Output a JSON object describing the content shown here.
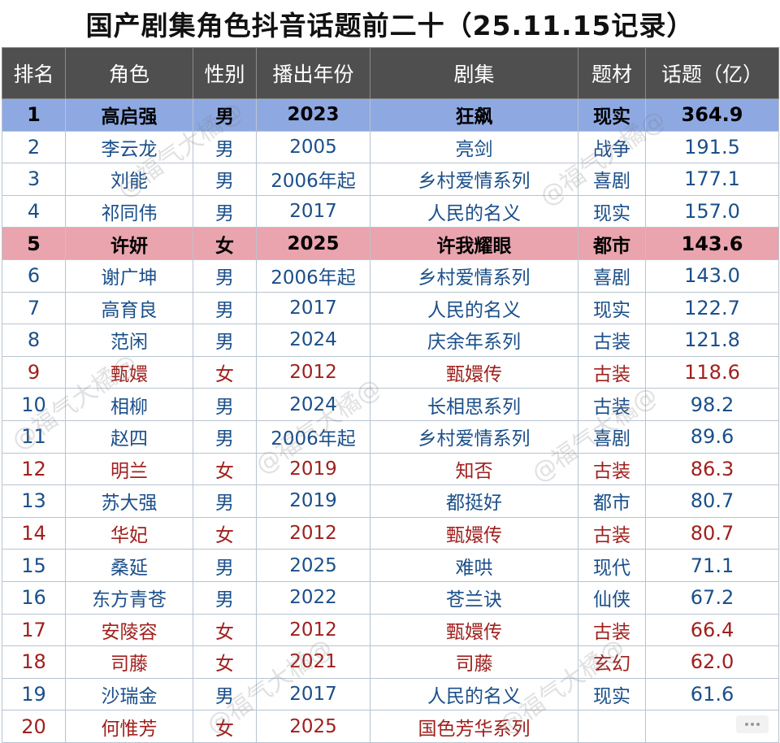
{
  "title": "国产剧集角色抖音话题前二十（25.11.15记录）",
  "headers": [
    "排名",
    "角色",
    "性别",
    "播出年份",
    "剧集",
    "题材",
    "话题（亿）"
  ],
  "rows": [
    {
      "rank": "1",
      "role": "高启强",
      "gender": "男",
      "year": "2023",
      "series": "狂飙",
      "genre": "现实",
      "topic": "364.9",
      "style": "r-top"
    },
    {
      "rank": "2",
      "role": "李云龙",
      "gender": "男",
      "year": "2005",
      "series": "亮剑",
      "genre": "战争",
      "topic": "191.5",
      "style": ""
    },
    {
      "rank": "3",
      "role": "刘能",
      "gender": "男",
      "year": "2006年起",
      "series": "乡村爱情系列",
      "genre": "喜剧",
      "topic": "177.1",
      "style": ""
    },
    {
      "rank": "4",
      "role": "祁同伟",
      "gender": "男",
      "year": "2017",
      "series": "人民的名义",
      "genre": "现实",
      "topic": "157.0",
      "style": ""
    },
    {
      "rank": "5",
      "role": "许妍",
      "gender": "女",
      "year": "2025",
      "series": "许我耀眼",
      "genre": "都市",
      "topic": "143.6",
      "style": "r-pink"
    },
    {
      "rank": "6",
      "role": "谢广坤",
      "gender": "男",
      "year": "2006年起",
      "series": "乡村爱情系列",
      "genre": "喜剧",
      "topic": "143.0",
      "style": ""
    },
    {
      "rank": "7",
      "role": "高育良",
      "gender": "男",
      "year": "2017",
      "series": "人民的名义",
      "genre": "现实",
      "topic": "122.7",
      "style": ""
    },
    {
      "rank": "8",
      "role": "范闲",
      "gender": "男",
      "year": "2024",
      "series": "庆余年系列",
      "genre": "古装",
      "topic": "121.8",
      "style": ""
    },
    {
      "rank": "9",
      "role": "甄嬛",
      "gender": "女",
      "year": "2012",
      "series": "甄嬛传",
      "genre": "古装",
      "topic": "118.6",
      "style": "r-red"
    },
    {
      "rank": "10",
      "role": "相柳",
      "gender": "男",
      "year": "2024",
      "series": "长相思系列",
      "genre": "古装",
      "topic": "98.2",
      "style": ""
    },
    {
      "rank": "11",
      "role": "赵四",
      "gender": "男",
      "year": "2006年起",
      "series": "乡村爱情系列",
      "genre": "喜剧",
      "topic": "89.6",
      "style": ""
    },
    {
      "rank": "12",
      "role": "明兰",
      "gender": "女",
      "year": "2019",
      "series": "知否",
      "genre": "古装",
      "topic": "86.3",
      "style": "r-red"
    },
    {
      "rank": "13",
      "role": "苏大强",
      "gender": "男",
      "year": "2019",
      "series": "都挺好",
      "genre": "都市",
      "topic": "80.7",
      "style": ""
    },
    {
      "rank": "14",
      "role": "华妃",
      "gender": "女",
      "year": "2012",
      "series": "甄嬛传",
      "genre": "古装",
      "topic": "80.7",
      "style": "r-red"
    },
    {
      "rank": "15",
      "role": "桑延",
      "gender": "男",
      "year": "2025",
      "series": "难哄",
      "genre": "现代",
      "topic": "71.1",
      "style": ""
    },
    {
      "rank": "16",
      "role": "东方青苍",
      "gender": "男",
      "year": "2022",
      "series": "苍兰诀",
      "genre": "仙侠",
      "topic": "67.2",
      "style": ""
    },
    {
      "rank": "17",
      "role": "安陵容",
      "gender": "女",
      "year": "2012",
      "series": "甄嬛传",
      "genre": "古装",
      "topic": "66.4",
      "style": "r-red"
    },
    {
      "rank": "18",
      "role": "司藤",
      "gender": "女",
      "year": "2021",
      "series": "司藤",
      "genre": "玄幻",
      "topic": "62.0",
      "style": "r-red"
    },
    {
      "rank": "19",
      "role": "沙瑞金",
      "gender": "男",
      "year": "2017",
      "series": "人民的名义",
      "genre": "现实",
      "topic": "61.6",
      "style": ""
    },
    {
      "rank": "20",
      "role": "何惟芳",
      "gender": "女",
      "year": "2025",
      "series": "国色芳华系列",
      "genre": "",
      "topic": "",
      "style": "r-red"
    }
  ],
  "watermark": "@福气大橘@",
  "colors": {
    "header_bg": "#4f4f4f",
    "highlight_blue": "#8ea9e2",
    "highlight_pink": "#e9a4ae",
    "male_text": "#1b4f8a",
    "female_text": "#a0201e"
  }
}
